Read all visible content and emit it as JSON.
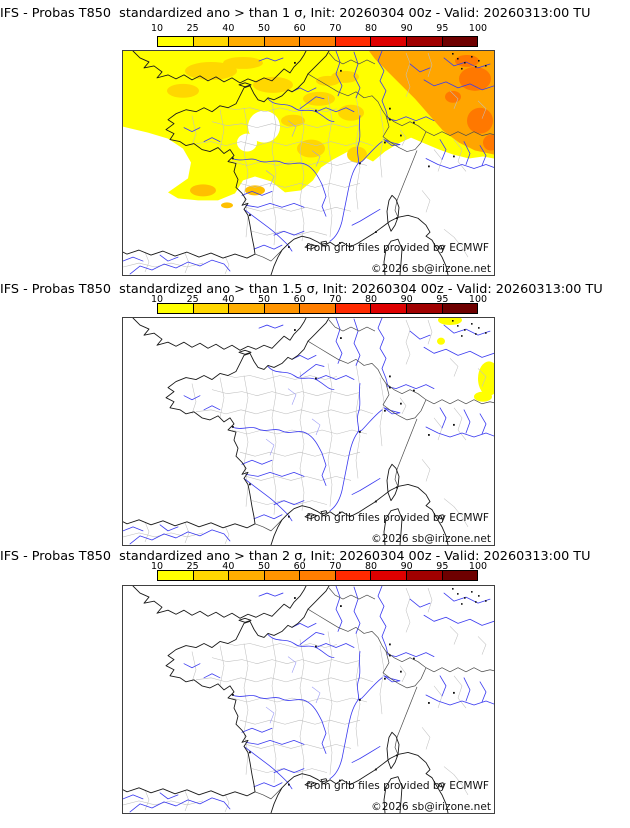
{
  "page": {
    "background": "#ffffff"
  },
  "attribution": {
    "source": "from grib files provided by ECMWF",
    "copyright": "©2026 sb@irizone.net"
  },
  "colorbar": {
    "ticks": [
      "10",
      "25",
      "40",
      "50",
      "60",
      "70",
      "80",
      "90",
      "95",
      "100"
    ],
    "colors": [
      "#ffff00",
      "#ffd700",
      "#ffae00",
      "#ff9400",
      "#ff7e00",
      "#ff2a00",
      "#de0000",
      "#a00000",
      "#6e0000"
    ]
  },
  "panels": [
    {
      "title": "IFS - Probas T850  standardized ano > than 1 σ, Init: 20260304 00z - Valid: 20260313:00 TU"
    },
    {
      "title": "IFS - Probas T850  standardized ano > than 1.5 σ, Init: 20260304 00z - Valid: 20260313:00 TU"
    },
    {
      "title": "IFS - Probas T850  standardized ano > than 2 σ, Init: 20260304 00z - Valid: 20260313:00 TU"
    }
  ],
  "map_colors": {
    "coastline": "#1a1a1a",
    "country_border": "#4d4d4d",
    "admin_border": "#c0c0c0",
    "river": "#3b3bf0",
    "river_light": "#9a9af5",
    "frame": "#404040"
  },
  "shading": {
    "band1": "#ffff00",
    "band2": "#ffd700",
    "band3": "#ffa500",
    "band4": "#ff7800",
    "spot": "#ffc000"
  }
}
